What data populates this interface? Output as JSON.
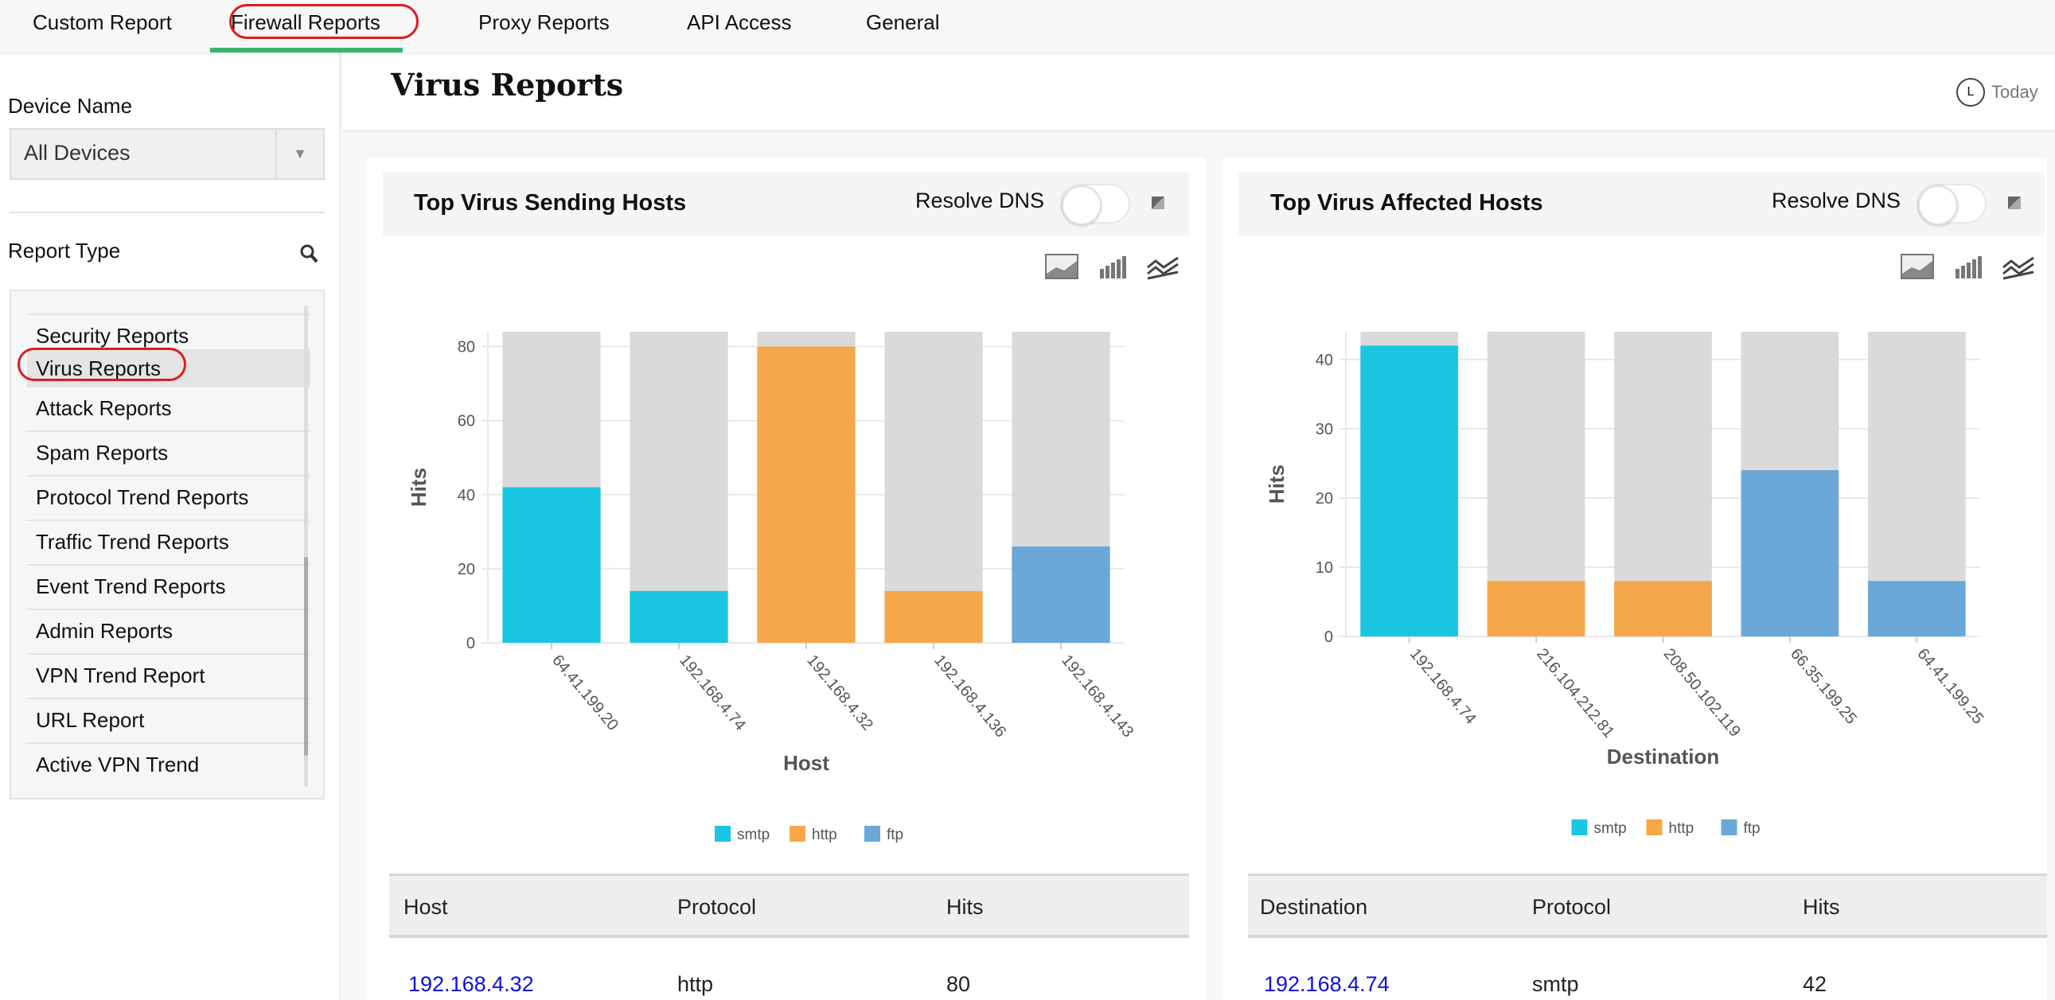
{
  "nav": {
    "tabs": [
      "Custom Report",
      "Firewall Reports",
      "Proxy Reports",
      "API Access",
      "General"
    ],
    "active": "Firewall Reports"
  },
  "sidebar": {
    "device_label": "Device Name",
    "device_value": "All Devices",
    "report_type_label": "Report Type",
    "items": [
      "Security Reports",
      "Virus Reports",
      "Attack Reports",
      "Spam Reports",
      "Protocol Trend Reports",
      "Traffic Trend Reports",
      "Event Trend Reports",
      "Admin Reports",
      "VPN Trend Report",
      "URL Report",
      "Active VPN Trend"
    ],
    "selected": "Virus Reports"
  },
  "header": {
    "title": "Virus Reports",
    "time_icon_letter": "L",
    "time_range": "Today"
  },
  "panels": [
    {
      "title": "Top Virus Sending Hosts",
      "resolve_dns": "Resolve DNS",
      "resolve_dns_on": false,
      "table": {
        "headers": [
          "Host",
          "Protocol",
          "Hits"
        ],
        "rows": [
          [
            "192.168.4.32",
            "http",
            "80"
          ]
        ]
      }
    },
    {
      "title": "Top Virus Affected Hosts",
      "resolve_dns": "Resolve DNS",
      "resolve_dns_on": false,
      "table": {
        "headers": [
          "Destination",
          "Protocol",
          "Hits"
        ],
        "rows": [
          [
            "192.168.4.74",
            "smtp",
            "42"
          ]
        ]
      }
    }
  ],
  "colors": {
    "smtp": "#1bc6e1",
    "http": "#f5a84a",
    "ftp": "#69a8d8",
    "background_bar": "#dadada",
    "active_tab": "#3cb371",
    "link": "#1010e0"
  },
  "chart_data": [
    {
      "type": "bar",
      "xlabel": "Host",
      "ylabel": "Hits",
      "ylim": [
        0,
        84
      ],
      "yticks": [
        0,
        20,
        40,
        60,
        80
      ],
      "grid": true,
      "legend": "bottom",
      "categories": [
        "64.41.199.20",
        "192.168.4.74",
        "192.168.4.32",
        "192.168.4.136",
        "192.168.4.143"
      ],
      "protocols": [
        "smtp",
        "smtp",
        "http",
        "http",
        "ftp"
      ],
      "values": [
        42,
        14,
        80,
        14,
        26
      ],
      "legend_entries": [
        "smtp",
        "http",
        "ftp"
      ]
    },
    {
      "type": "bar",
      "xlabel": "Destination",
      "ylabel": "Hits",
      "ylim": [
        0,
        44
      ],
      "yticks": [
        0,
        10,
        20,
        30,
        40
      ],
      "grid": true,
      "legend": "bottom",
      "categories": [
        "192.168.4.74",
        "216.104.212.81",
        "208.50.102.119",
        "66.35.199.25",
        "64.41.199.25"
      ],
      "protocols": [
        "smtp",
        "http",
        "http",
        "ftp",
        "ftp"
      ],
      "values": [
        42,
        8,
        8,
        24,
        8
      ],
      "legend_entries": [
        "smtp",
        "http",
        "ftp"
      ]
    }
  ]
}
